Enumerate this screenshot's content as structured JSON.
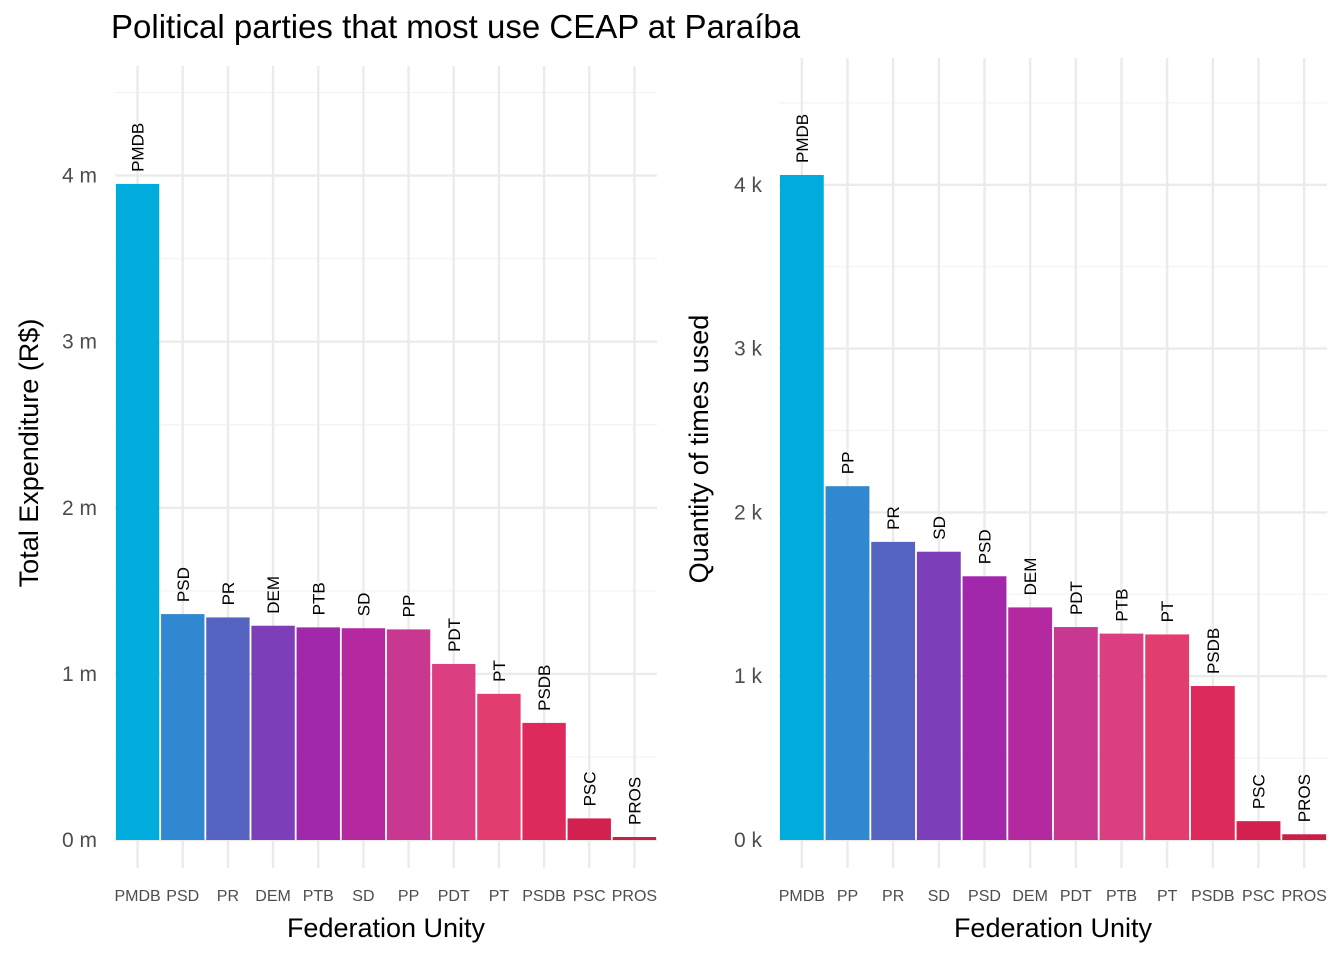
{
  "title": "Political parties that most use CEAP at Paraíba",
  "chart_data": [
    {
      "type": "bar",
      "categories": [
        "PMDB",
        "PSD",
        "PR",
        "DEM",
        "PTB",
        "SD",
        "PP",
        "PDT",
        "PT",
        "PSDB",
        "PSC",
        "PROS"
      ],
      "values": [
        3950000,
        1360000,
        1340000,
        1290000,
        1280000,
        1275000,
        1268000,
        1060000,
        880000,
        705000,
        130000,
        18000
      ],
      "colors": [
        "#00acdc",
        "#2f88d0",
        "#5563c1",
        "#7c3fb9",
        "#a128aa",
        "#b4299f",
        "#c83790",
        "#dc3e82",
        "#e33c6e",
        "#dd2a5b",
        "#d3204f",
        "#c81f47"
      ],
      "tick_values": [
        0,
        1000000,
        2000000,
        3000000,
        4000000
      ],
      "tick_labels": [
        "0 m",
        "1 m",
        "2 m",
        "3 m",
        "4 m"
      ],
      "xlabel": "Federation Unity",
      "ylabel": "Total Expenditure (R$)",
      "ylim": [
        0,
        4600000
      ],
      "grid": true
    },
    {
      "type": "bar",
      "categories": [
        "PMDB",
        "PP",
        "PR",
        "SD",
        "PSD",
        "DEM",
        "PDT",
        "PTB",
        "PT",
        "PSDB",
        "PSC",
        "PROS"
      ],
      "values": [
        4060,
        2160,
        1820,
        1760,
        1610,
        1420,
        1300,
        1260,
        1255,
        940,
        115,
        35
      ],
      "colors": [
        "#00acdc",
        "#2f88d0",
        "#5563c1",
        "#7c3fb9",
        "#a128aa",
        "#b4299f",
        "#c83790",
        "#dc3e82",
        "#e33c6e",
        "#dd2a5b",
        "#d3204f",
        "#c81f47"
      ],
      "tick_values": [
        0,
        1000,
        2000,
        3000,
        4000
      ],
      "tick_labels": [
        "0 k",
        "1 k",
        "2 k",
        "3 k",
        "4 k"
      ],
      "xlabel": "Federation Unity",
      "ylabel": "Quantity of times used",
      "ylim": [
        0,
        4600
      ],
      "grid": true
    }
  ]
}
